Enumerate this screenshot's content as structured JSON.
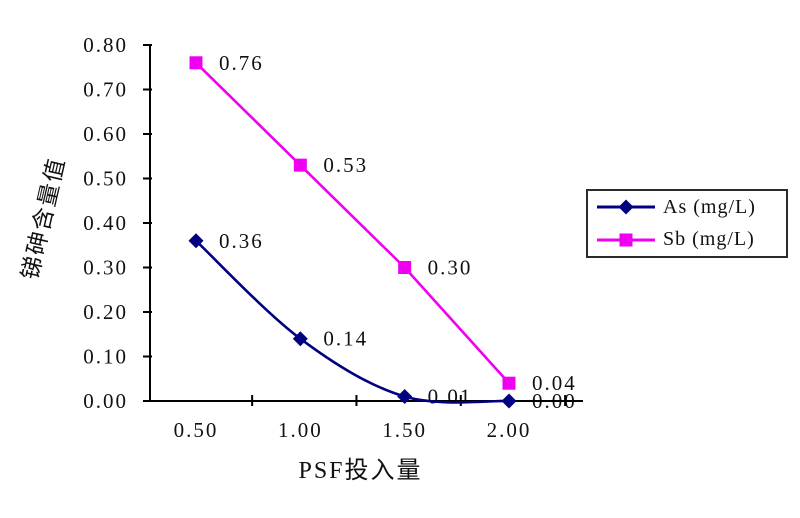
{
  "chart_data": {
    "type": "line",
    "title": "",
    "xlabel": "PSF投入量",
    "ylabel": "锑砷含量值",
    "categories": [
      "0.50",
      "1.00",
      "1.50",
      "2.00"
    ],
    "ylim": [
      0,
      0.8
    ],
    "ytick_step": 0.1,
    "ytick_labels": [
      "0.00",
      "0.10",
      "0.20",
      "0.30",
      "0.40",
      "0.50",
      "0.60",
      "0.70",
      "0.80"
    ],
    "grid": false,
    "legend_position": "right",
    "series": [
      {
        "name": "As (mg/L)",
        "values": [
          0.36,
          0.14,
          0.01,
          0.0
        ],
        "point_labels": [
          "0.36",
          "0.14",
          "0.01",
          "0.00"
        ],
        "color": "#000080",
        "marker": "diamond",
        "smooth": true
      },
      {
        "name": "Sb (mg/L)",
        "values": [
          0.76,
          0.53,
          0.3,
          0.04
        ],
        "point_labels": [
          "0.76",
          "0.53",
          "0.30",
          "0.04"
        ],
        "color": "#F000F0",
        "marker": "square",
        "smooth": false
      }
    ],
    "axis_color": "#000000",
    "label_color": "#111111"
  }
}
